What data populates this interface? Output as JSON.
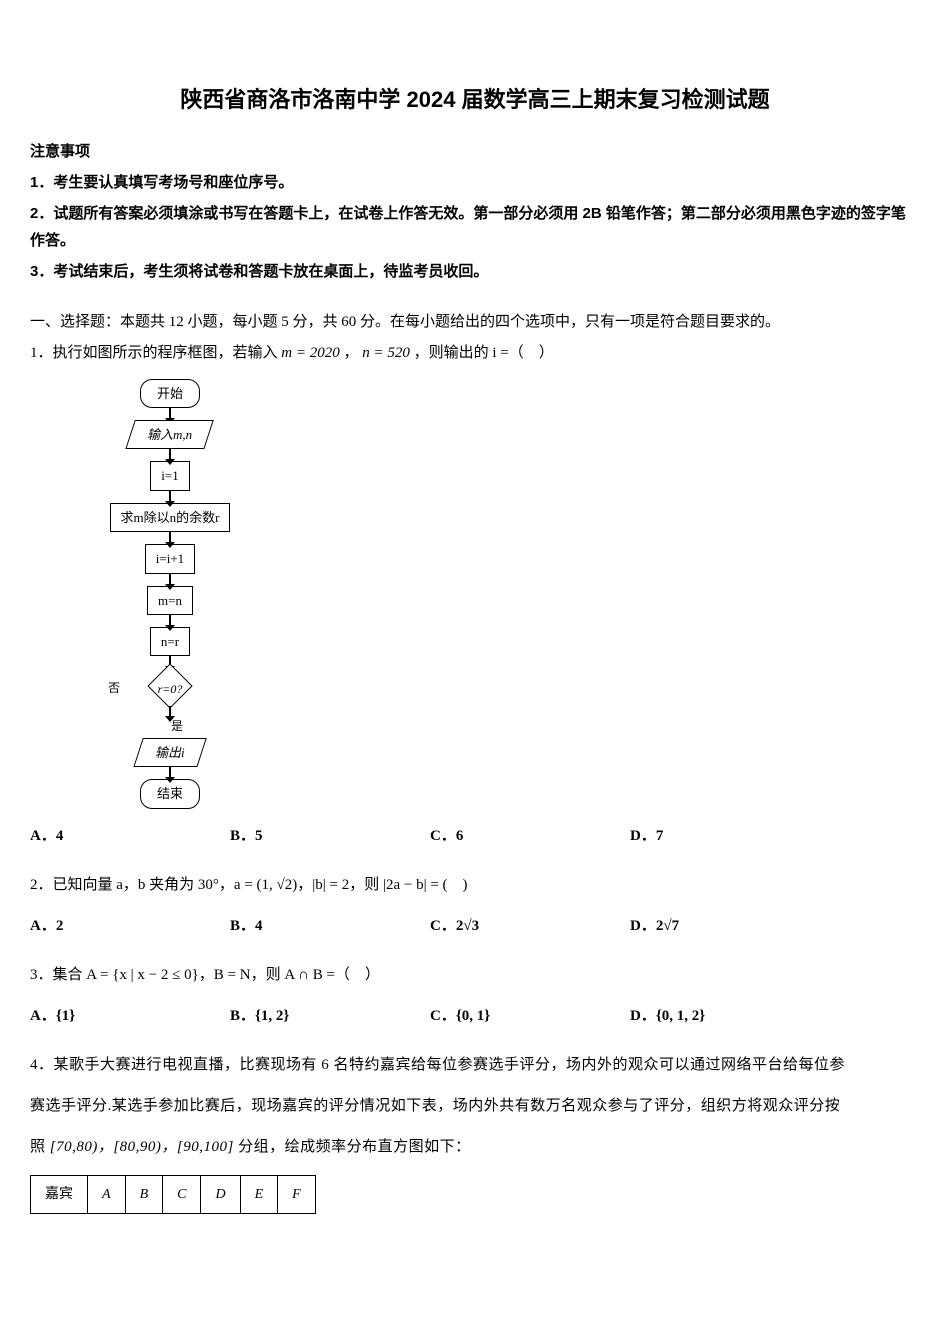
{
  "title": "陕西省商洛市洛南中学 2024 届数学高三上期末复习检测试题",
  "notice_header": "注意事项",
  "notices": [
    "1．考生要认真填写考场号和座位序号。",
    "2．试题所有答案必须填涂或书写在答题卡上，在试卷上作答无效。第一部分必须用 2B 铅笔作答；第二部分必须用黑色字迹的签字笔作答。",
    "3．考试结束后，考生须将试卷和答题卡放在桌面上，待监考员收回。"
  ],
  "section1_intro": "一、选择题：本题共 12 小题，每小题 5 分，共 60 分。在每小题给出的四个选项中，只有一项是符合题目要求的。",
  "q1": {
    "text_prefix": "1．执行如图所示的程序框图，若输入 ",
    "m_expr": "m = 2020",
    "comma1": "，",
    "n_expr": "n = 520",
    "text_suffix": "，则输出的 i =（　）",
    "flow": {
      "start": "开始",
      "input": "输入m,n",
      "init": "i=1",
      "mod": "求m除以n的余数r",
      "inc": "i=i+1",
      "assign1": "m=n",
      "assign2": "n=r",
      "cond": "r=0?",
      "no": "否",
      "yes": "是",
      "output": "输出i",
      "end": "结束"
    },
    "options": {
      "A": "A．4",
      "B": "B．5",
      "C": "C．6",
      "D": "D．7"
    }
  },
  "q2": {
    "text": "2．已知向量 a，b 夹角为 30°，a = (1, √2)，|b| = 2，则 |2a − b| = (　)",
    "options": {
      "A": "A．2",
      "B": "B．4",
      "C": "C．2√3",
      "D": "D．2√7"
    }
  },
  "q3": {
    "text": "3．集合 A = {x | x − 2 ≤ 0}，B = N，则 A ∩ B =（　）",
    "options": {
      "A": "A．{1}",
      "B": "B．{1, 2}",
      "C": "C．{0, 1}",
      "D": "D．{0, 1, 2}"
    }
  },
  "q4": {
    "p1": "4．某歌手大赛进行电视直播，比赛现场有 6 名特约嘉宾给每位参赛选手评分，场内外的观众可以通过网络平台给每位参",
    "p2": "赛选手评分.某选手参加比赛后，现场嘉宾的评分情况如下表，场内外共有数万名观众参与了评分，组织方将观众评分按",
    "p3_prefix": "照 ",
    "p3_intervals": "[70,80)，[80,90)，[90,100]",
    "p3_suffix": " 分组，绘成频率分布直方图如下：",
    "table": {
      "row_label": "嘉宾",
      "cols": [
        "A",
        "B",
        "C",
        "D",
        "E",
        "F"
      ]
    }
  }
}
